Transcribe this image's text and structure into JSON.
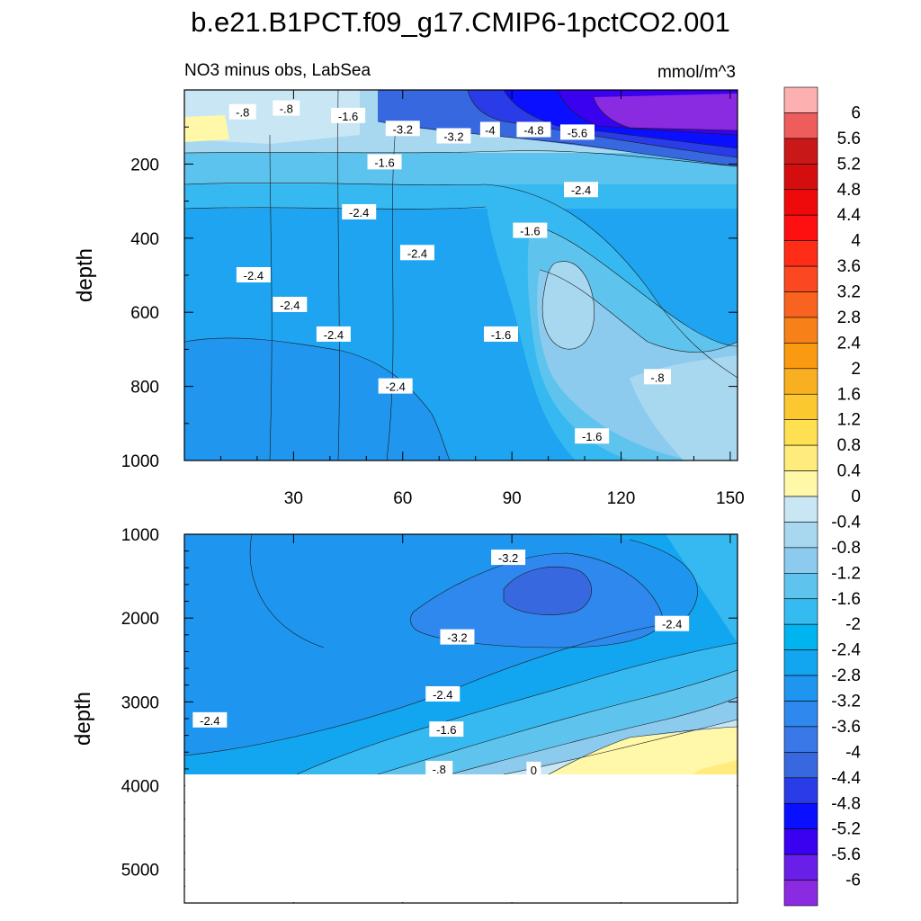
{
  "figure": {
    "title": "b.e21.B1PCT.f09_g17.CMIP6-1pctCO2.001",
    "left_subtitle": "NO3 minus obs, LabSea",
    "right_subtitle": "mmol/m^3"
  },
  "chart_data": [
    {
      "type": "heatmap",
      "panel": "upper",
      "xlabel": "",
      "ylabel": "depth",
      "xlim": [
        0,
        152
      ],
      "ylim": [
        1000,
        0
      ],
      "xticks": [
        30,
        60,
        90,
        120,
        150
      ],
      "xticklabels": [
        "30",
        "60",
        "90",
        "120",
        "150"
      ],
      "yticks": [
        200,
        400,
        600,
        800,
        1000
      ],
      "yticklabels": [
        "200",
        "400",
        "600",
        "800",
        "1000"
      ],
      "contour_labels": [
        {
          "text": "-.8",
          "x": 16,
          "y": 60
        },
        {
          "text": "-.8",
          "x": 28,
          "y": 50
        },
        {
          "text": "-1.6",
          "x": 45,
          "y": 70
        },
        {
          "text": "-3.2",
          "x": 60,
          "y": 105
        },
        {
          "text": "-3.2",
          "x": 74,
          "y": 125
        },
        {
          "text": "-4",
          "x": 84,
          "y": 108
        },
        {
          "text": "-4.8",
          "x": 96,
          "y": 108
        },
        {
          "text": "-5.6",
          "x": 108,
          "y": 115
        },
        {
          "text": "-1.6",
          "x": 55,
          "y": 195
        },
        {
          "text": "-2.4",
          "x": 48,
          "y": 330
        },
        {
          "text": "-2.4",
          "x": 109,
          "y": 270
        },
        {
          "text": "-1.6",
          "x": 95,
          "y": 380
        },
        {
          "text": "-2.4",
          "x": 64,
          "y": 440
        },
        {
          "text": "-2.4",
          "x": 19,
          "y": 500
        },
        {
          "text": "-2.4",
          "x": 29,
          "y": 580
        },
        {
          "text": "-2.4",
          "x": 41,
          "y": 660
        },
        {
          "text": "-1.6",
          "x": 87,
          "y": 660
        },
        {
          "text": "-2.4",
          "x": 58,
          "y": 800
        },
        {
          "text": "-.8",
          "x": 130,
          "y": 775
        },
        {
          "text": "-1.6",
          "x": 112,
          "y": 935
        }
      ]
    },
    {
      "type": "heatmap",
      "panel": "lower",
      "xlabel": "",
      "ylabel": "depth",
      "xlim": [
        0,
        152
      ],
      "ylim": [
        5400,
        1000
      ],
      "yticks": [
        1000,
        2000,
        3000,
        4000,
        5000
      ],
      "yticklabels": [
        "1000",
        "2000",
        "3000",
        "4000",
        "5000"
      ],
      "bottom_depth": 3870,
      "contour_labels": [
        {
          "text": "-3.2",
          "x": 89,
          "y": 1280
        },
        {
          "text": "-2.4",
          "x": 134,
          "y": 2070
        },
        {
          "text": "-3.2",
          "x": 75,
          "y": 2230
        },
        {
          "text": "-2.4",
          "x": 71,
          "y": 2910
        },
        {
          "text": "-2.4",
          "x": 7,
          "y": 3220
        },
        {
          "text": "-1.6",
          "x": 72,
          "y": 3330
        },
        {
          "text": "-.8",
          "x": 70,
          "y": 3800
        },
        {
          "text": "0",
          "x": 96,
          "y": 3810
        }
      ]
    }
  ],
  "colorbar": {
    "levels": [
      "-6",
      "-5.6",
      "-5.2",
      "-4.8",
      "-4.4",
      "-4",
      "-3.6",
      "-3.2",
      "-2.8",
      "-2.4",
      "-2",
      "-1.6",
      "-1.2",
      "-0.8",
      "-0.4",
      "0",
      "0.4",
      "0.8",
      "1.2",
      "1.6",
      "2",
      "2.4",
      "2.8",
      "3.2",
      "3.6",
      "4",
      "4.4",
      "4.8",
      "5.2",
      "5.6",
      "6"
    ],
    "colors": [
      "#8a2be2",
      "#6a1fe8",
      "#3a00f0",
      "#0a10ff",
      "#2a3ce8",
      "#3868e0",
      "#3a78e8",
      "#2e88ee",
      "#1e96f0",
      "#12a6f0",
      "#00b4f0",
      "#34bcf0",
      "#5ec4ee",
      "#8ccaee",
      "#a8d8f0",
      "#c8e6f4",
      "#fff8a8",
      "#ffec7c",
      "#ffe050",
      "#fcc830",
      "#f8b020",
      "#fa9a10",
      "#f88018",
      "#f86420",
      "#fc4820",
      "#ff2c18",
      "#ff1010",
      "#ee0a0a",
      "#d40e0e",
      "#c81818",
      "#ee5c5c",
      "#fcb0b0"
    ]
  }
}
